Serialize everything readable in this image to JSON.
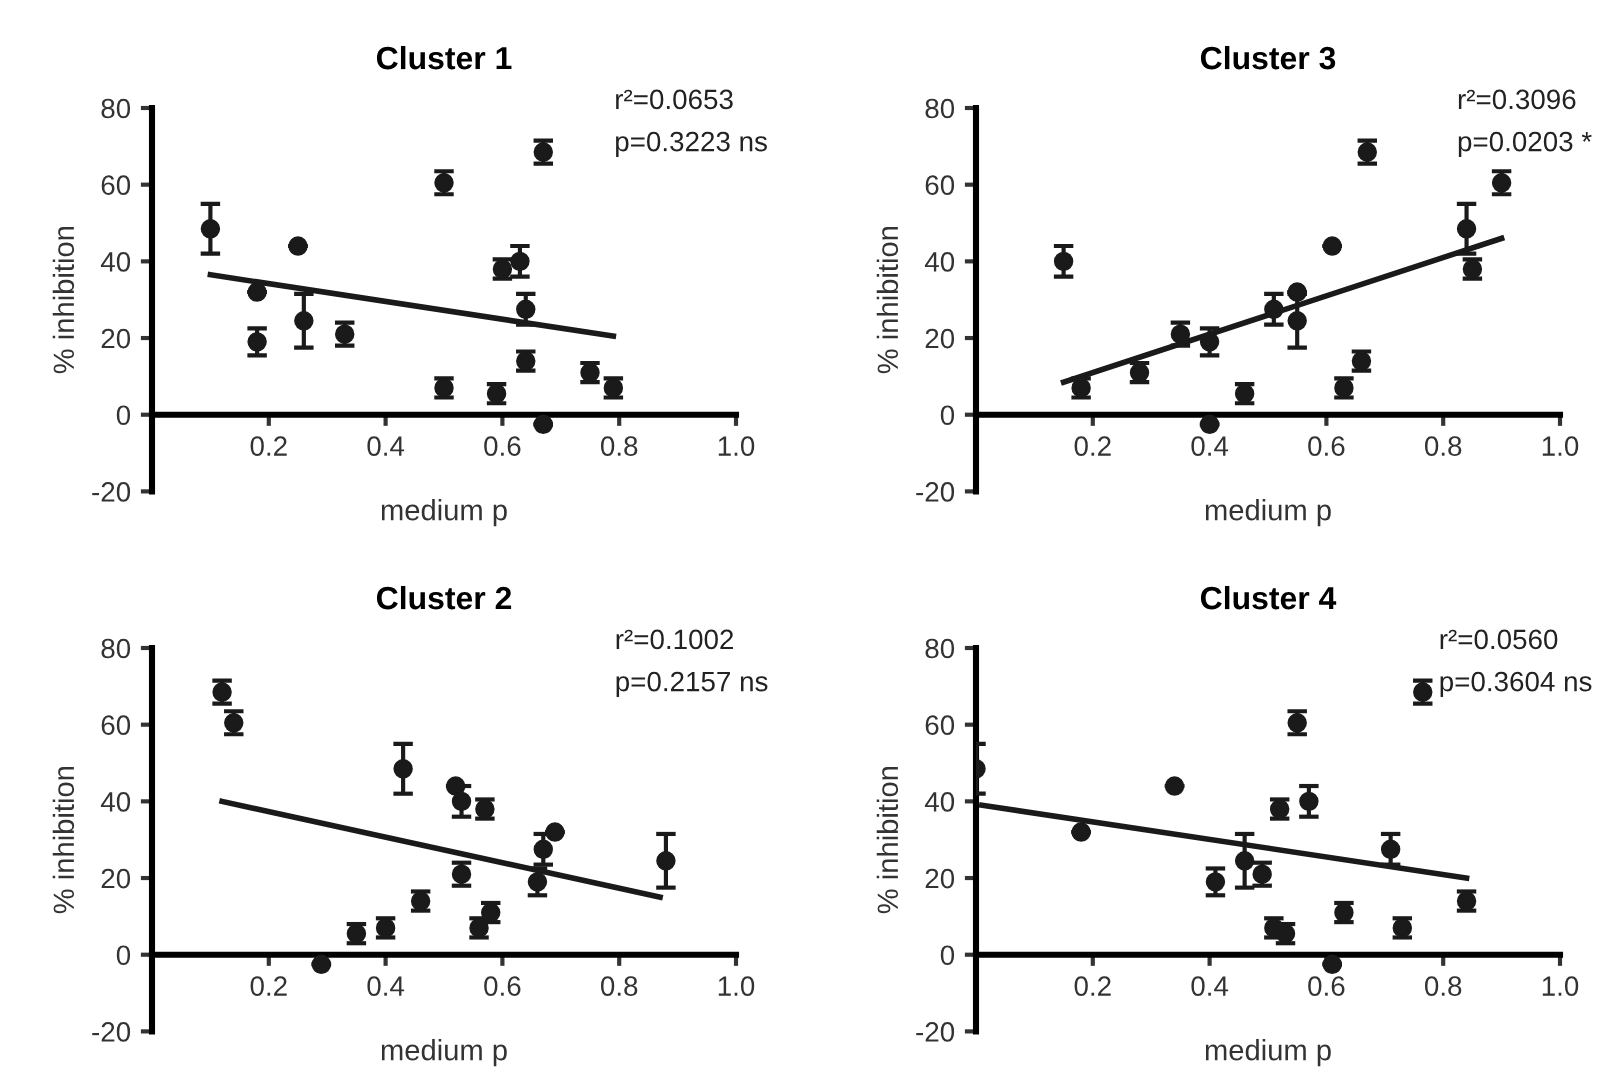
{
  "chart_data": [
    {
      "type": "scatter",
      "title": "Cluster 1",
      "xlabel": "medium p",
      "ylabel": "% inhibition",
      "xlim": [
        0,
        1.0
      ],
      "ylim": [
        -20,
        80
      ],
      "xticks": [
        {
          "value": 0.2,
          "label": "0.2"
        },
        {
          "value": 0.4,
          "label": "0.4"
        },
        {
          "value": 0.6,
          "label": "0.6"
        },
        {
          "value": 0.8,
          "label": "0.8"
        },
        {
          "value": 1.0,
          "label": "1.0"
        }
      ],
      "yticks": [
        -20,
        0,
        20,
        40,
        60,
        80
      ],
      "grid": false,
      "legend": false,
      "annotations": [
        "r²=0.0653",
        "p=0.3223 ns"
      ],
      "series": [
        {
          "marker": "circle",
          "color": "#1a1a1a",
          "x": [
            0.1,
            0.18,
            0.18,
            0.25,
            0.26,
            0.33,
            0.5,
            0.5,
            0.59,
            0.6,
            0.63,
            0.64,
            0.64,
            0.67,
            0.67,
            0.75,
            0.79
          ],
          "values": [
            48.5,
            32,
            19,
            44,
            24.5,
            21,
            60.5,
            7,
            5.5,
            38,
            40,
            27.5,
            14,
            -2.5,
            68.5,
            11,
            7
          ],
          "errors": [
            6.5,
            null,
            3.5,
            null,
            7,
            3,
            3,
            2.5,
            2.5,
            2.5,
            4,
            4,
            2.5,
            null,
            3,
            2.5,
            2.5
          ]
        },
        {
          "type": "line",
          "color": "#1a1a1a",
          "line_style": "solid",
          "x": [
            0.1,
            0.79
          ],
          "values": [
            36.5,
            20.5
          ]
        }
      ]
    },
    {
      "type": "scatter",
      "title": "Cluster 3",
      "xlabel": "medium p",
      "ylabel": "% inhibition",
      "xlim": [
        0,
        1.0
      ],
      "ylim": [
        -20,
        80
      ],
      "xticks": [
        {
          "value": 0.2,
          "label": "0.2"
        },
        {
          "value": 0.4,
          "label": "0.4"
        },
        {
          "value": 0.6,
          "label": "0.6"
        },
        {
          "value": 0.8,
          "label": "0.8"
        },
        {
          "value": 1.0,
          "label": "1.0"
        }
      ],
      "yticks": [
        -20,
        0,
        20,
        40,
        60,
        80
      ],
      "grid": false,
      "legend": false,
      "annotations": [
        "r²=0.3096",
        "p=0.0203 *"
      ],
      "series": [
        {
          "marker": "circle",
          "color": "#1a1a1a",
          "x": [
            0.15,
            0.18,
            0.28,
            0.35,
            0.4,
            0.4,
            0.46,
            0.51,
            0.55,
            0.55,
            0.61,
            0.63,
            0.66,
            0.67,
            0.84,
            0.85,
            0.9
          ],
          "values": [
            40,
            7,
            11,
            21,
            -2.5,
            19,
            5.5,
            27.5,
            32,
            24.5,
            44,
            7,
            14,
            68.5,
            48.5,
            38,
            60.5
          ],
          "errors": [
            4,
            2.5,
            2.5,
            3,
            null,
            3.5,
            2.5,
            4,
            null,
            7,
            null,
            2.5,
            2.5,
            3,
            6.5,
            2.5,
            3
          ]
        },
        {
          "type": "line",
          "color": "#1a1a1a",
          "line_style": "solid",
          "x": [
            0.15,
            0.9
          ],
          "values": [
            8.5,
            46
          ]
        }
      ]
    },
    {
      "type": "scatter",
      "title": "Cluster 2",
      "xlabel": "medium p",
      "ylabel": "% inhibition",
      "xlim": [
        0,
        1.0
      ],
      "ylim": [
        -20,
        80
      ],
      "xticks": [
        {
          "value": 0.2,
          "label": "0.2"
        },
        {
          "value": 0.4,
          "label": "0.4"
        },
        {
          "value": 0.6,
          "label": "0.6"
        },
        {
          "value": 0.8,
          "label": "0.8"
        },
        {
          "value": 1.0,
          "label": "1.0"
        }
      ],
      "yticks": [
        -20,
        0,
        20,
        40,
        60,
        80
      ],
      "grid": false,
      "legend": false,
      "annotations": [
        "r²=0.1002",
        "p=0.2157 ns"
      ],
      "series": [
        {
          "marker": "circle",
          "color": "#1a1a1a",
          "x": [
            0.12,
            0.14,
            0.29,
            0.35,
            0.4,
            0.43,
            0.46,
            0.52,
            0.53,
            0.53,
            0.56,
            0.57,
            0.58,
            0.66,
            0.67,
            0.69,
            0.88
          ],
          "values": [
            68.5,
            60.5,
            -2.5,
            5.5,
            7,
            48.5,
            14,
            44,
            40,
            21,
            7,
            38,
            11,
            19,
            27.5,
            32,
            24.5
          ],
          "errors": [
            3,
            3,
            null,
            2.5,
            2.5,
            6.5,
            2.5,
            null,
            4,
            3,
            2.5,
            2.5,
            2.5,
            3.5,
            4,
            null,
            7
          ]
        },
        {
          "type": "line",
          "color": "#1a1a1a",
          "line_style": "solid",
          "x": [
            0.12,
            0.87
          ],
          "values": [
            40,
            15
          ]
        }
      ]
    },
    {
      "type": "scatter",
      "title": "Cluster 4",
      "xlabel": "medium p",
      "ylabel": "% inhibition",
      "xlim": [
        0,
        1.0
      ],
      "ylim": [
        -20,
        80
      ],
      "xticks": [
        {
          "value": 0.2,
          "label": "0.2"
        },
        {
          "value": 0.4,
          "label": "0.4"
        },
        {
          "value": 0.6,
          "label": "0.6"
        },
        {
          "value": 0.8,
          "label": "0.8"
        },
        {
          "value": 1.0,
          "label": "1.0"
        }
      ],
      "yticks": [
        -20,
        0,
        20,
        40,
        60,
        80
      ],
      "grid": false,
      "legend": false,
      "annotations": [
        "r²=0.0560",
        "p=0.3604 ns"
      ],
      "series": [
        {
          "marker": "circle",
          "color": "#1a1a1a",
          "x": [
            0.0,
            0.18,
            0.34,
            0.41,
            0.46,
            0.49,
            0.51,
            0.52,
            0.53,
            0.55,
            0.57,
            0.61,
            0.63,
            0.71,
            0.73,
            0.765,
            0.84
          ],
          "values": [
            48.5,
            32,
            44,
            19,
            24.5,
            21,
            7,
            38,
            5.5,
            60.5,
            40,
            -2.5,
            11,
            27.5,
            7,
            68.5,
            14
          ],
          "errors": [
            6.5,
            null,
            null,
            3.5,
            7,
            3,
            2.5,
            2.5,
            2.5,
            3,
            4,
            null,
            2.5,
            4,
            2.5,
            3,
            2.5
          ]
        },
        {
          "type": "line",
          "color": "#1a1a1a",
          "line_style": "solid",
          "x": [
            0.01,
            0.84
          ],
          "values": [
            39,
            20
          ]
        }
      ]
    }
  ]
}
